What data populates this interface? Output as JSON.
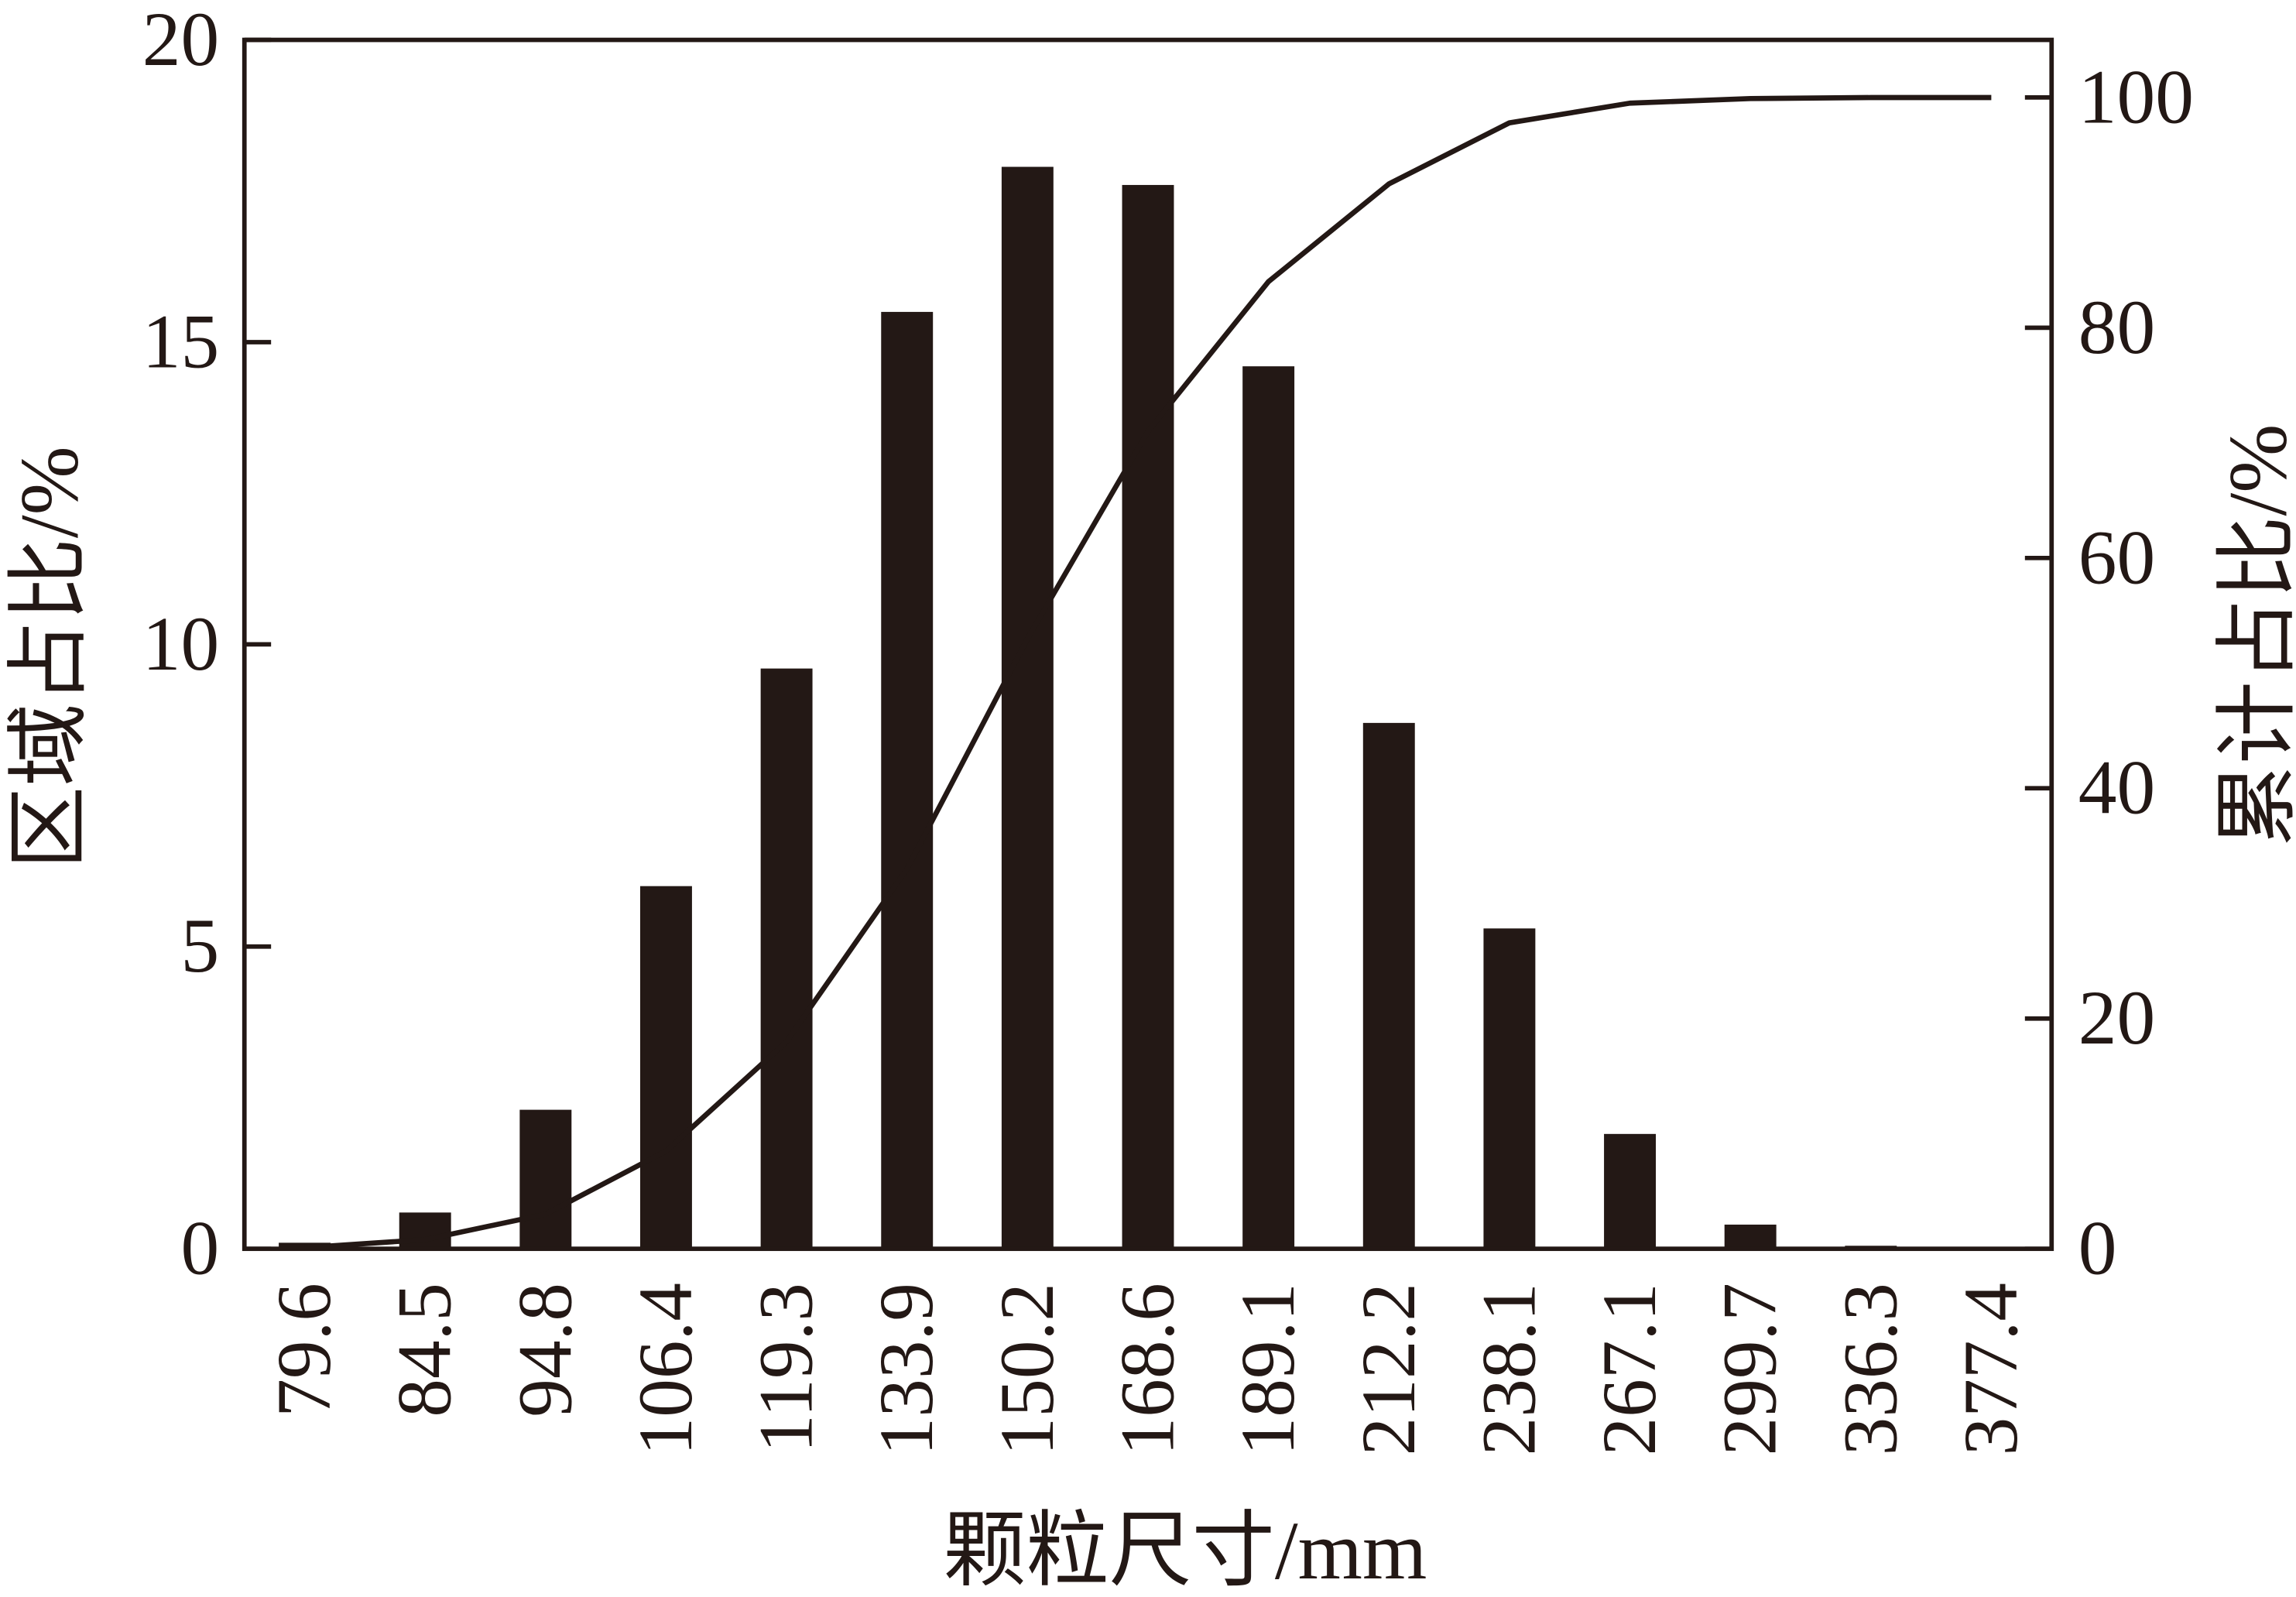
{
  "chart_data": {
    "type": "bar",
    "categories": [
      "79.6",
      "84.5",
      "94.8",
      "106.4",
      "119.3",
      "133.9",
      "150.2",
      "168.6",
      "189.1",
      "212.2",
      "238.1",
      "267.1",
      "299.7",
      "336.3",
      "377.4"
    ],
    "series": [
      {
        "type": "bar",
        "axis": "left",
        "values": [
          0.1,
          0.6,
          2.3,
          6.0,
          9.6,
          15.5,
          17.9,
          17.6,
          14.6,
          8.7,
          5.3,
          1.9,
          0.4,
          0.05,
          0
        ]
      },
      {
        "type": "line",
        "axis": "right",
        "values": [
          0.1,
          0.8,
          3.0,
          8.5,
          18.0,
          33.0,
          53.0,
          71.0,
          84.0,
          92.5,
          97.8,
          99.5,
          99.9,
          100,
          100
        ]
      }
    ],
    "xlabel": "颗粒尺寸/mm",
    "ylabel": "区域占比/%",
    "y2label": "累计占比/%",
    "ylim": [
      0,
      20
    ],
    "y2lim": [
      0,
      105
    ],
    "yticks": [
      0,
      5,
      10,
      15,
      20
    ],
    "y2ticks": [
      0,
      20,
      40,
      60,
      80,
      100
    ],
    "grid": false,
    "legend": "none",
    "colors": {
      "bar": "#231815",
      "line": "#231815",
      "axis": "#231815"
    }
  }
}
